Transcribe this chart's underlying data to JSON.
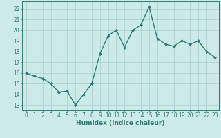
{
  "x": [
    0,
    1,
    2,
    3,
    4,
    5,
    6,
    7,
    8,
    9,
    10,
    11,
    12,
    13,
    14,
    15,
    16,
    17,
    18,
    19,
    20,
    21,
    22,
    23
  ],
  "y": [
    16.0,
    15.7,
    15.5,
    15.0,
    14.2,
    14.3,
    13.0,
    14.0,
    15.0,
    17.8,
    19.5,
    20.0,
    18.4,
    20.0,
    20.5,
    22.2,
    19.2,
    18.7,
    18.5,
    19.0,
    18.7,
    19.0,
    18.0,
    17.5
  ],
  "xlabel": "Humidex (Indice chaleur)",
  "xlim": [
    -0.5,
    23.5
  ],
  "ylim": [
    12.5,
    22.7
  ],
  "yticks": [
    13,
    14,
    15,
    16,
    17,
    18,
    19,
    20,
    21,
    22
  ],
  "xticks": [
    0,
    1,
    2,
    3,
    4,
    5,
    6,
    7,
    8,
    9,
    10,
    11,
    12,
    13,
    14,
    15,
    16,
    17,
    18,
    19,
    20,
    21,
    22,
    23
  ],
  "line_color": "#2d7d74",
  "marker": "D",
  "marker_size": 2.0,
  "line_width": 1.0,
  "bg_color": "#cceae7",
  "grid_color": "#aad4d0",
  "axis_color": "#2d7d74",
  "xlabel_fontsize": 6.5,
  "tick_fontsize": 5.5
}
